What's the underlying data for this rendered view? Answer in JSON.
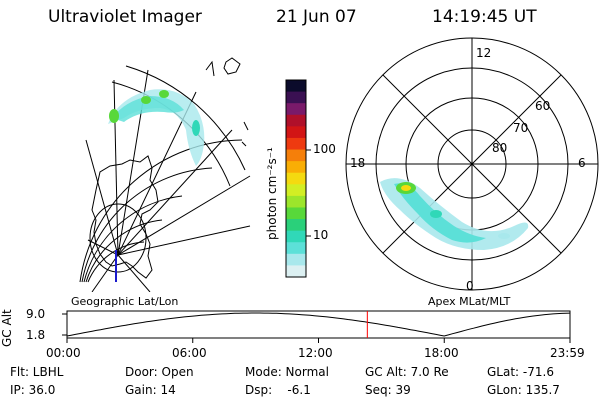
{
  "header": {
    "instrument": "Ultraviolet Imager",
    "date": "21 Jun 07",
    "time": "14:19:45 UT"
  },
  "colorbar": {
    "unit_label": "photon cm⁻²s⁻¹",
    "ticks": [
      "100",
      "10"
    ],
    "colors": [
      "#0b0b2b",
      "#3a1052",
      "#7a1a6a",
      "#b0102a",
      "#d21515",
      "#ee3a10",
      "#f57f0a",
      "#f9ae05",
      "#f4da10",
      "#d2ee24",
      "#9ce52b",
      "#58d83a",
      "#2ad07a",
      "#30d8b8",
      "#5ce0d8",
      "#a8e8ec",
      "#dcf0f2"
    ]
  },
  "panels": {
    "left_caption": "Geographic Lat/Lon",
    "right_caption": "Apex  MLat/MLT"
  },
  "polar": {
    "mlt_labels": {
      "top": "12",
      "left": "18",
      "right": "6",
      "bottom": "0"
    },
    "mlat_labels": [
      "60",
      "70",
      "80"
    ]
  },
  "altitude_plot": {
    "ylabel": "GC Alt",
    "ymax_label": "9.0",
    "ymin_label": "1.8",
    "x_ticks": [
      "00:00",
      "06:00",
      "12:00",
      "18:00",
      "23:59"
    ],
    "current_time_hours": 14.33,
    "marker_color": "#ff0000"
  },
  "status": {
    "row1": {
      "flt": "Flt: LBHL",
      "door": "Door: Open",
      "mode": "Mode: Normal",
      "gcalt": "GC Alt: 7.0 Re",
      "glat": "GLat: -71.6"
    },
    "row2": {
      "ip": "IP: 36.0",
      "gain": "Gain: 14",
      "dsp": "Dsp:    -6.1",
      "seq": "Seq: 39",
      "glon": "GLon: 135.7"
    }
  }
}
